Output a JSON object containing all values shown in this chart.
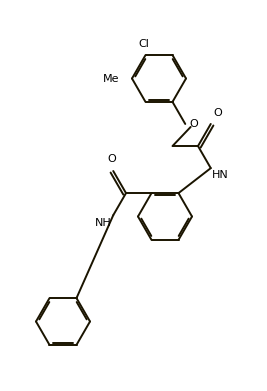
{
  "bg": "#ffffff",
  "lc": "#1a1400",
  "tc": "#000000",
  "figsize": [
    2.67,
    3.91
  ],
  "dpi": 100,
  "lw": 1.4,
  "fs": 8.0,
  "dbo": 0.06,
  "xlim": [
    0,
    8.9
  ],
  "ylim": [
    0,
    13.0
  ]
}
